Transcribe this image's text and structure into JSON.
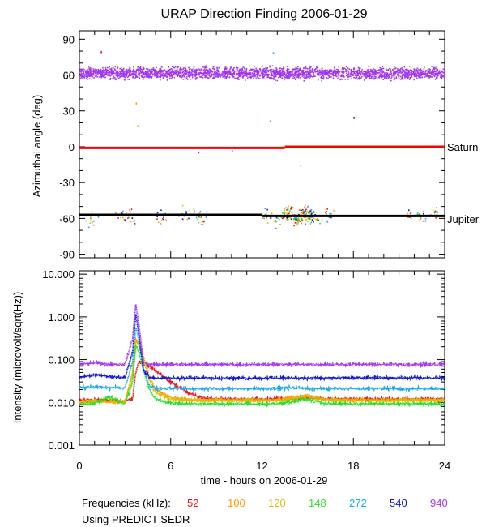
{
  "figure": {
    "title": "URAP Direction Finding  2006-01-29",
    "xlabel": "time - hours on 2006-01-29",
    "legend_prefix": "Frequencies (kHz):",
    "footnote": "Using PREDICT SEDR"
  },
  "frequencies": [
    {
      "label": "52",
      "color": "#e8141a"
    },
    {
      "label": "100",
      "color": "#ff9a00"
    },
    {
      "label": "120",
      "color": "#d6c000"
    },
    {
      "label": "148",
      "color": "#22e022"
    },
    {
      "label": "272",
      "color": "#18a8e8"
    },
    {
      "label": "540",
      "color": "#0a12d8"
    },
    {
      "label": "940",
      "color": "#a035f0"
    }
  ],
  "chart_data": [
    {
      "type": "scatter",
      "title": "URAP Direction Finding  2006-01-29",
      "ylabel": "Azimuthal angle (deg)",
      "xlabel": "",
      "xlim": [
        0,
        24
      ],
      "ylim": [
        -93,
        97
      ],
      "xticks": [
        "0",
        "6",
        "12",
        "18",
        "24"
      ],
      "yticks": [
        "90",
        "60",
        "30",
        "0",
        "-30",
        "-60",
        "-90"
      ],
      "ytick_values": [
        90,
        60,
        30,
        0,
        -30,
        -60,
        -90
      ],
      "reference_lines": [
        {
          "name": "Saturn",
          "color": "#ff0000",
          "segments": [
            {
              "x": [
                0,
                13.5
              ],
              "y": [
                -1,
                -1
              ]
            },
            {
              "x": [
                13.5,
                24
              ],
              "y": [
                0,
                0
              ]
            }
          ]
        },
        {
          "name": "Jupiter",
          "color": "#000000",
          "segments": [
            {
              "x": [
                0,
                12
              ],
              "y": [
                -57,
                -57
              ]
            },
            {
              "x": [
                12,
                24
              ],
              "y": [
                -58,
                -58
              ]
            }
          ]
        }
      ],
      "series": [
        {
          "name": "940 kHz band",
          "color": "#a035f0",
          "x_range": [
            0,
            24
          ],
          "y_center": 62,
          "spread": 4,
          "note": "dense band"
        },
        {
          "name": "Jupiter emission clusters",
          "x": [
            0.8,
            2.6,
            3.5,
            5.3,
            6.9,
            7.6,
            8.0,
            12.3,
            13.0,
            13.7,
            14.3,
            14.8,
            15.2,
            16.2,
            21.8,
            22.3,
            23.2
          ],
          "y": [
            -60,
            -57,
            -58,
            -59,
            -57,
            -55,
            -60,
            -57,
            -61,
            -56,
            -60,
            -55,
            -58,
            -57,
            -58,
            -56,
            -55
          ]
        },
        {
          "name": "isolated outliers",
          "x": [
            1.4,
            3.7,
            3.8,
            12.5,
            12.7,
            18.0,
            7.8,
            10.0,
            14.5
          ],
          "y": [
            80,
            37,
            18,
            22,
            79,
            25,
            -4,
            -3,
            -15
          ]
        }
      ],
      "annotations": [
        "Saturn",
        "Jupiter"
      ]
    },
    {
      "type": "line",
      "ylabel": "Intensity (microvolt/sqrt(Hz))",
      "xlabel": "time - hours on 2006-01-29",
      "yscale": "log",
      "xlim": [
        0,
        24
      ],
      "ylim": [
        0.001,
        12
      ],
      "xticks": [
        "0",
        "6",
        "12",
        "18",
        "24"
      ],
      "xtick_values": [
        0,
        6,
        12,
        18,
        24
      ],
      "yticks": [
        "10.000",
        "1.000",
        "0.100",
        "0.010",
        "0.001"
      ],
      "ytick_values": [
        10,
        1,
        0.1,
        0.01,
        0.001
      ],
      "x": [
        0,
        1,
        2,
        3,
        3.5,
        3.7,
        3.9,
        4.2,
        4.6,
        5,
        6,
        7,
        8,
        9,
        10,
        11,
        12,
        13,
        14,
        15,
        16,
        17,
        18,
        19,
        20,
        21,
        22,
        23,
        24
      ],
      "series": [
        {
          "name": "52",
          "color": "#e8141a",
          "values": [
            0.011,
            0.0115,
            0.011,
            0.011,
            0.012,
            0.05,
            0.09,
            0.08,
            0.07,
            0.055,
            0.03,
            0.018,
            0.013,
            0.012,
            0.012,
            0.012,
            0.012,
            0.012,
            0.012,
            0.013,
            0.012,
            0.012,
            0.012,
            0.012,
            0.012,
            0.012,
            0.012,
            0.012,
            0.012
          ]
        },
        {
          "name": "100",
          "color": "#ff9a00",
          "values": [
            0.0105,
            0.011,
            0.0105,
            0.0105,
            0.05,
            0.3,
            0.25,
            0.12,
            0.04,
            0.02,
            0.013,
            0.012,
            0.0115,
            0.0115,
            0.0115,
            0.0115,
            0.0115,
            0.0115,
            0.013,
            0.015,
            0.012,
            0.0115,
            0.0115,
            0.0115,
            0.0115,
            0.0115,
            0.0115,
            0.0115,
            0.0115
          ]
        },
        {
          "name": "120",
          "color": "#d6c000",
          "values": [
            0.01,
            0.0105,
            0.01,
            0.01,
            0.04,
            0.28,
            0.22,
            0.1,
            0.035,
            0.017,
            0.012,
            0.0112,
            0.011,
            0.011,
            0.011,
            0.011,
            0.011,
            0.011,
            0.012,
            0.014,
            0.0115,
            0.011,
            0.011,
            0.011,
            0.011,
            0.011,
            0.011,
            0.011,
            0.011
          ]
        },
        {
          "name": "148",
          "color": "#22e022",
          "values": [
            0.009,
            0.0095,
            0.0135,
            0.0092,
            0.03,
            0.22,
            0.15,
            0.06,
            0.02,
            0.012,
            0.0095,
            0.0093,
            0.0092,
            0.0092,
            0.0092,
            0.0092,
            0.0092,
            0.0092,
            0.0105,
            0.012,
            0.0095,
            0.0092,
            0.0092,
            0.0092,
            0.0092,
            0.0092,
            0.0092,
            0.0092,
            0.0092
          ]
        },
        {
          "name": "272",
          "color": "#18a8e8",
          "values": [
            0.022,
            0.023,
            0.022,
            0.022,
            0.09,
            0.55,
            0.3,
            0.06,
            0.025,
            0.021,
            0.021,
            0.021,
            0.021,
            0.021,
            0.021,
            0.021,
            0.021,
            0.021,
            0.022,
            0.021,
            0.021,
            0.021,
            0.021,
            0.021,
            0.021,
            0.021,
            0.021,
            0.021,
            0.021
          ]
        },
        {
          "name": "540",
          "color": "#0a12d8",
          "values": [
            0.038,
            0.045,
            0.04,
            0.038,
            0.15,
            1.2,
            0.4,
            0.06,
            0.038,
            0.037,
            0.037,
            0.037,
            0.037,
            0.037,
            0.037,
            0.037,
            0.037,
            0.037,
            0.037,
            0.037,
            0.037,
            0.037,
            0.037,
            0.037,
            0.037,
            0.037,
            0.037,
            0.037,
            0.037
          ]
        },
        {
          "name": "940",
          "color": "#a035f0",
          "values": [
            0.077,
            0.085,
            0.078,
            0.077,
            0.3,
            2.0,
            0.7,
            0.09,
            0.077,
            0.077,
            0.077,
            0.077,
            0.077,
            0.077,
            0.077,
            0.077,
            0.077,
            0.077,
            0.077,
            0.077,
            0.077,
            0.077,
            0.077,
            0.077,
            0.077,
            0.077,
            0.077,
            0.077,
            0.077
          ]
        }
      ]
    }
  ]
}
